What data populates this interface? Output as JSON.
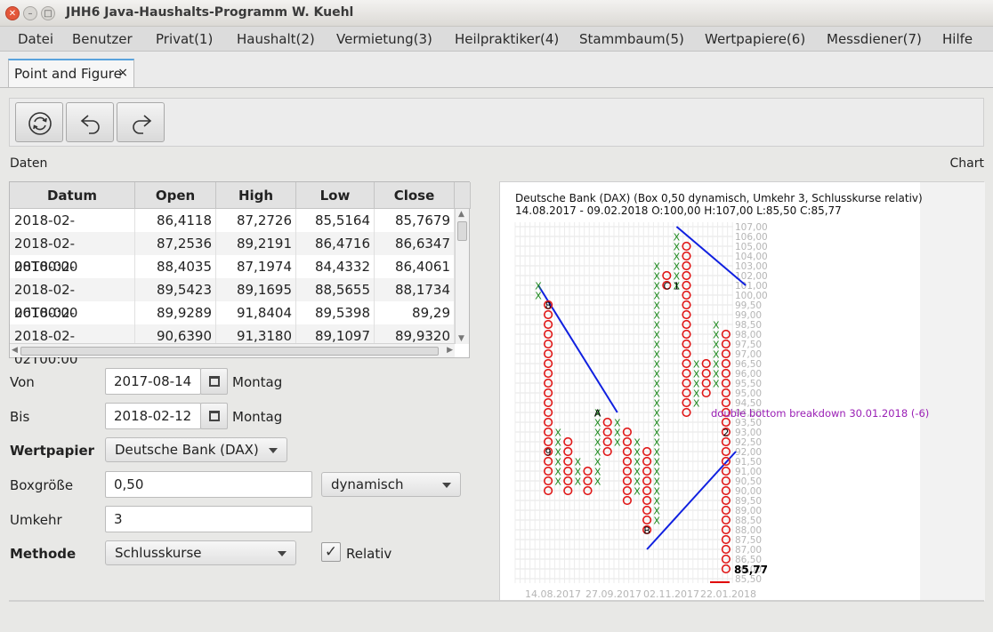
{
  "window": {
    "title": "JHH6 Java-Haushalts-Programm W. Kuehl"
  },
  "menu": [
    "Datei",
    "Benutzer",
    "Privat(1)",
    "Haushalt(2)",
    "Vermietung(3)",
    "Heilpraktiker(4)",
    "Stammbaum(5)",
    "Wertpapiere(6)",
    "Messdiener(7)",
    "Hilfe"
  ],
  "tab": {
    "label": "Point and Figure",
    "close": "×"
  },
  "toolbar": {
    "buttons": [
      "refresh-icon",
      "undo-icon",
      "redo-icon"
    ]
  },
  "labels": {
    "daten": "Daten",
    "chart": "Chart"
  },
  "table": {
    "columns": [
      "Datum",
      "Open",
      "High",
      "Low",
      "Close"
    ],
    "rows": [
      [
        "2018-02-09T00:00",
        "86,4118",
        "87,2726",
        "85,5164",
        "85,7679"
      ],
      [
        "2018-02-08T00:00",
        "87,2536",
        "89,2191",
        "86,4716",
        "86,6347"
      ],
      [
        "2018-02-07T00:00",
        "88,4035",
        "87,1974",
        "84,4332",
        "86,4061"
      ],
      [
        "2018-02-06T00:00",
        "89,5423",
        "89,1695",
        "88,5655",
        "88,1734"
      ],
      [
        "2018-02-05T00:00",
        "89,9289",
        "91,8404",
        "89,5398",
        "89,29"
      ],
      [
        "2018-02-02T00:00",
        "90,6390",
        "91,3180",
        "89,1097",
        "89,9320"
      ]
    ]
  },
  "form": {
    "von_label": "Von",
    "von_value": "2017-08-14",
    "von_day": "Montag",
    "bis_label": "Bis",
    "bis_value": "2018-02-12",
    "bis_day": "Montag",
    "wertpapier_label": "Wertpapier",
    "wertpapier_value": "Deutsche Bank (DAX)",
    "boxgroesse_label": "Boxgröße",
    "boxgroesse_value": "0,50",
    "boxgroesse_mode": "dynamisch",
    "umkehr_label": "Umkehr",
    "umkehr_value": "3",
    "methode_label": "Methode",
    "methode_value": "Schlusskurse",
    "relativ_label": "Relativ",
    "relativ_checked": true
  },
  "chart_data": {
    "type": "point-and-figure",
    "title": "Deutsche Bank (DAX) (Box 0,50 dynamisch, Umkehr 3, Schlusskurse relativ)",
    "subtitle": "14.08.2017 - 09.02.2018 O:100,00 H:107,00 L:85,50 C:85,77",
    "y_ticks": [
      "107,00",
      "106,00",
      "105,00",
      "104,00",
      "103,00",
      "102,00",
      "101,00",
      "100,00",
      "99,50",
      "99,00",
      "98,50",
      "98,00",
      "97,50",
      "97,00",
      "96,50",
      "96,00",
      "95,50",
      "95,00",
      "94,50",
      "94,00",
      "93,50",
      "93,00",
      "92,50",
      "92,00",
      "91,50",
      "91,00",
      "90,50",
      "90,00",
      "89,50",
      "89,00",
      "88,50",
      "88,00",
      "87,50",
      "87,00",
      "86,50",
      "86,00",
      "85,50"
    ],
    "x_ticks": [
      "14.08.2017",
      "27.09.2017",
      "02.11.2017",
      "22.01.2018"
    ],
    "last_value": "85,77",
    "signal": "double bottom breakdown 30.01.2018 (-6)",
    "columns": [
      {
        "type": "X",
        "from": 100.0,
        "to": 100.5
      },
      {
        "type": "O",
        "from": 90.0,
        "to": 99.5
      },
      {
        "type": "X",
        "from": 90.5,
        "to": 93.0
      },
      {
        "type": "O",
        "from": 90.0,
        "to": 92.5
      },
      {
        "type": "X",
        "from": 90.5,
        "to": 91.5
      },
      {
        "type": "O",
        "from": 90.0,
        "to": 91.0
      },
      {
        "type": "X",
        "from": 90.5,
        "to": 94.0
      },
      {
        "type": "O",
        "from": 92.0,
        "to": 93.5
      },
      {
        "type": "X",
        "from": 92.5,
        "to": 93.5
      },
      {
        "type": "O",
        "from": 89.5,
        "to": 93.0
      },
      {
        "type": "X",
        "from": 90.0,
        "to": 92.5
      },
      {
        "type": "O",
        "from": 88.0,
        "to": 92.0
      },
      {
        "type": "X",
        "from": 88.5,
        "to": 103.0
      },
      {
        "type": "O",
        "from": 100.5,
        "to": 102.0
      },
      {
        "type": "X",
        "from": 101.0,
        "to": 106.0
      },
      {
        "type": "O",
        "from": 94.0,
        "to": 105.0
      },
      {
        "type": "X",
        "from": 94.5,
        "to": 96.5
      },
      {
        "type": "O",
        "from": 95.0,
        "to": 96.5
      },
      {
        "type": "X",
        "from": 95.5,
        "to": 98.5
      },
      {
        "type": "O",
        "from": 86.0,
        "to": 98.0
      }
    ],
    "labels": [
      {
        "text": "8",
        "col": 1,
        "at": 99.5
      },
      {
        "text": "9",
        "col": 1,
        "at": 92.0
      },
      {
        "text": "A",
        "col": 6,
        "at": 94.0
      },
      {
        "text": "B",
        "col": 11,
        "at": 88.0
      },
      {
        "text": "C",
        "col": 13,
        "at": 101.0
      },
      {
        "text": "1",
        "col": 14,
        "at": 101.0
      },
      {
        "text": "2",
        "col": 19,
        "at": 93.0
      }
    ]
  }
}
